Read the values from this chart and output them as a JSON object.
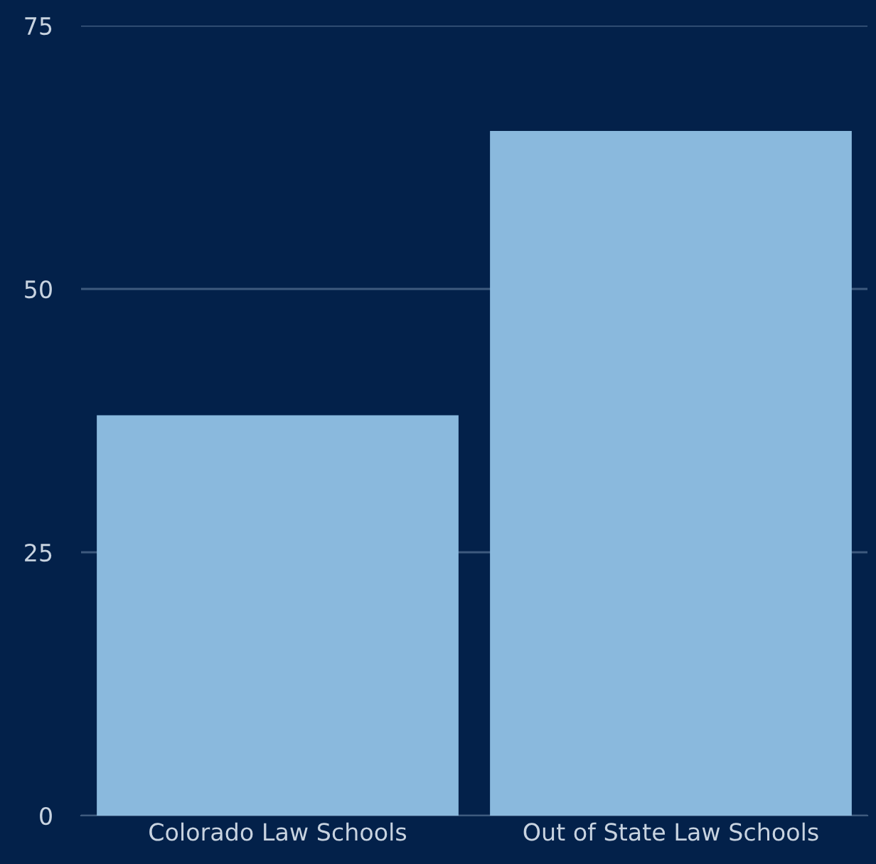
{
  "chart_data": {
    "type": "bar",
    "categories": [
      "Colorado Law Schools",
      "Out of State Law Schools"
    ],
    "values": [
      38,
      65
    ],
    "color": "#8ab9dd",
    "ylim": [
      0,
      75
    ],
    "yticks": [
      0,
      25,
      50,
      75
    ],
    "grid": "y"
  }
}
